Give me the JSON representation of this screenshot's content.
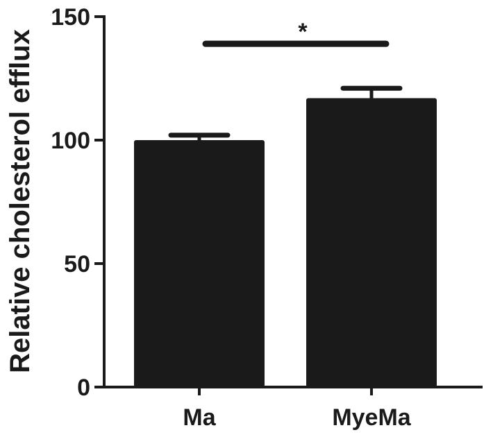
{
  "chart_data": {
    "type": "bar",
    "title": "",
    "xlabel": "",
    "ylabel": "Relative cholesterol efflux",
    "categories": [
      "Ma",
      "MyeMa"
    ],
    "values": [
      100,
      117
    ],
    "error_upper": [
      102,
      121
    ],
    "ylim": [
      0,
      150
    ],
    "yticks": [
      0,
      50,
      100,
      150
    ],
    "ytick_labels": [
      "0",
      "50",
      "100",
      "150"
    ],
    "grid": false,
    "legend": "none",
    "significance": {
      "between": [
        "Ma",
        "MyeMa"
      ],
      "label": "*",
      "level": 139
    },
    "bar_color": "#1a1a1a",
    "axis_color": "#1a1a1a"
  }
}
